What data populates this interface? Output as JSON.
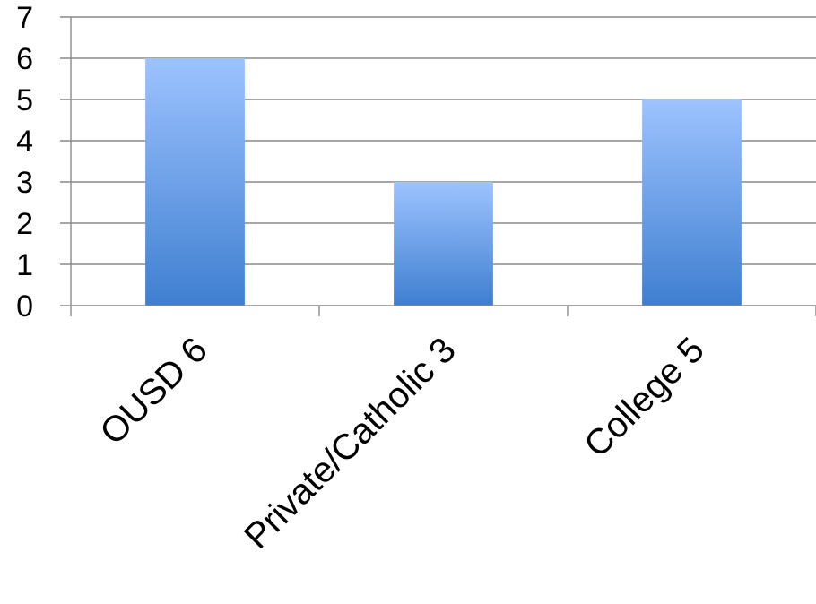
{
  "chart_data": {
    "type": "bar",
    "categories": [
      "OUSD 6",
      "Private/Catholic 3",
      "College 5"
    ],
    "values": [
      6,
      3,
      5
    ],
    "title": "",
    "xlabel": "",
    "ylabel": "",
    "ylim": [
      0,
      7
    ],
    "y_ticks": [
      "0",
      "1",
      "2",
      "3",
      "4",
      "5",
      "6",
      "7"
    ],
    "grid": true,
    "legend": "none",
    "bar_color_top": "#9dc3ff",
    "bar_color_bottom": "#3f7fd0"
  }
}
